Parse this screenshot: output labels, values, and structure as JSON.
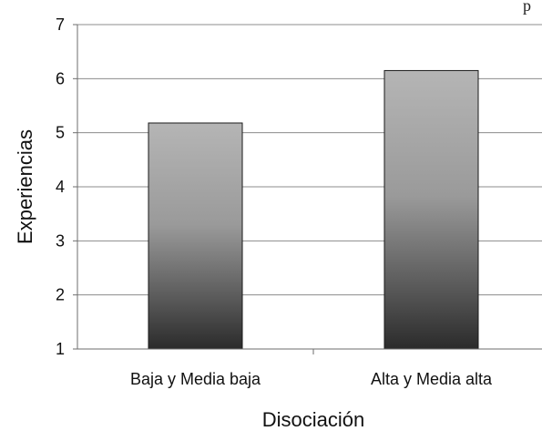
{
  "chart_data": {
    "type": "bar",
    "categories": [
      "Baja y Media baja",
      "Alta y Media alta"
    ],
    "values": [
      5.18,
      6.15
    ],
    "title": "",
    "xlabel": "Disociación",
    "ylabel": "Experiencias",
    "ylim": [
      1,
      7
    ],
    "yticks": [
      "1",
      "2",
      "3",
      "4",
      "5",
      "6",
      "7"
    ],
    "grid": true,
    "legend": "none",
    "colors": {
      "bar_top": "#b5b5b5",
      "bar_bottom": "#2b2b2b",
      "grid": "#8c8c8c",
      "axis": "#6e6e6e"
    }
  },
  "corner_mark": "p"
}
